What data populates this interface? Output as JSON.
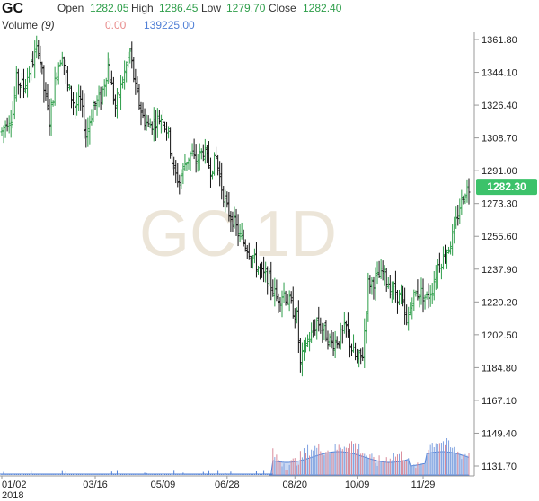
{
  "header": {
    "symbol": "GC",
    "open_label": "Open",
    "open_value": "1282.05",
    "high_label": "High",
    "high_value": "1286.45",
    "low_label": "Low",
    "low_value": "1279.70",
    "close_label": "Close",
    "close_value": "1282.40",
    "volume_label": "Volume",
    "volume_param": "(9)",
    "volume_value": "0.00",
    "volume_ma_value": "139225.00"
  },
  "watermark": "GC 1D",
  "last_price_badge": "1282.30",
  "colors": {
    "up": "#2e9e4a",
    "down": "#c0392b",
    "bar": "#111111",
    "volume_fill": "#9fb8e8",
    "volume_line": "#4f7fd6",
    "badge": "#3cc26a",
    "open_high_close_value": "#2e9e4a",
    "volume_zero": "#e88a8a",
    "volume_ma": "#4f7fd6"
  },
  "chart_data": {
    "type": "ohlc",
    "y_axis_ticks": [
      "1361.80",
      "1344.10",
      "1326.40",
      "1308.70",
      "1291.00",
      "1273.30",
      "1255.60",
      "1237.90",
      "1220.20",
      "1202.50",
      "1184.80",
      "1167.10",
      "1149.40",
      "1131.70"
    ],
    "y_range": [
      1131.7,
      1361.8
    ],
    "x_axis_ticks": [
      {
        "label": "01/02",
        "sub": "2018",
        "day": 0
      },
      {
        "label": "03/16",
        "sub": "",
        "day": 51
      },
      {
        "label": "05/09",
        "sub": "",
        "day": 88
      },
      {
        "label": "06/28",
        "sub": "",
        "day": 123
      },
      {
        "label": "08/20",
        "sub": "",
        "day": 160
      },
      {
        "label": "10/09",
        "sub": "",
        "day": 194
      },
      {
        "label": "11/29",
        "sub": "",
        "day": 230
      }
    ],
    "total_days": 255,
    "price_path": [
      [
        0,
        1312
      ],
      [
        3,
        1318
      ],
      [
        6,
        1322
      ],
      [
        8,
        1340
      ],
      [
        12,
        1336
      ],
      [
        16,
        1348
      ],
      [
        20,
        1358
      ],
      [
        23,
        1335
      ],
      [
        26,
        1318
      ],
      [
        30,
        1345
      ],
      [
        33,
        1355
      ],
      [
        36,
        1336
      ],
      [
        40,
        1326
      ],
      [
        43,
        1328
      ],
      [
        46,
        1310
      ],
      [
        50,
        1326
      ],
      [
        54,
        1330
      ],
      [
        58,
        1348
      ],
      [
        62,
        1325
      ],
      [
        66,
        1340
      ],
      [
        70,
        1355
      ],
      [
        73,
        1335
      ],
      [
        77,
        1320
      ],
      [
        80,
        1315
      ],
      [
        84,
        1318
      ],
      [
        88,
        1320
      ],
      [
        91,
        1310
      ],
      [
        94,
        1290
      ],
      [
        97,
        1285
      ],
      [
        100,
        1295
      ],
      [
        103,
        1300
      ],
      [
        106,
        1296
      ],
      [
        110,
        1302
      ],
      [
        114,
        1292
      ],
      [
        117,
        1298
      ],
      [
        120,
        1282
      ],
      [
        123,
        1270
      ],
      [
        126,
        1265
      ],
      [
        130,
        1255
      ],
      [
        134,
        1250
      ],
      [
        138,
        1242
      ],
      [
        142,
        1235
      ],
      [
        146,
        1232
      ],
      [
        150,
        1222
      ],
      [
        154,
        1225
      ],
      [
        158,
        1218
      ],
      [
        161,
        1212
      ],
      [
        163,
        1186
      ],
      [
        166,
        1198
      ],
      [
        169,
        1202
      ],
      [
        172,
        1210
      ],
      [
        176,
        1204
      ],
      [
        180,
        1198
      ],
      [
        184,
        1200
      ],
      [
        188,
        1206
      ],
      [
        191,
        1195
      ],
      [
        194,
        1188
      ],
      [
        197,
        1192
      ],
      [
        200,
        1230
      ],
      [
        204,
        1232
      ],
      [
        208,
        1236
      ],
      [
        212,
        1228
      ],
      [
        215,
        1225
      ],
      [
        218,
        1222
      ],
      [
        221,
        1208
      ],
      [
        224,
        1222
      ],
      [
        228,
        1226
      ],
      [
        232,
        1222
      ],
      [
        235,
        1228
      ],
      [
        238,
        1240
      ],
      [
        241,
        1244
      ],
      [
        244,
        1250
      ],
      [
        247,
        1258
      ],
      [
        250,
        1272
      ],
      [
        253,
        1280
      ],
      [
        255,
        1282
      ]
    ],
    "volume_scale_note": "volume histogram shown only for last ~100 sessions"
  }
}
